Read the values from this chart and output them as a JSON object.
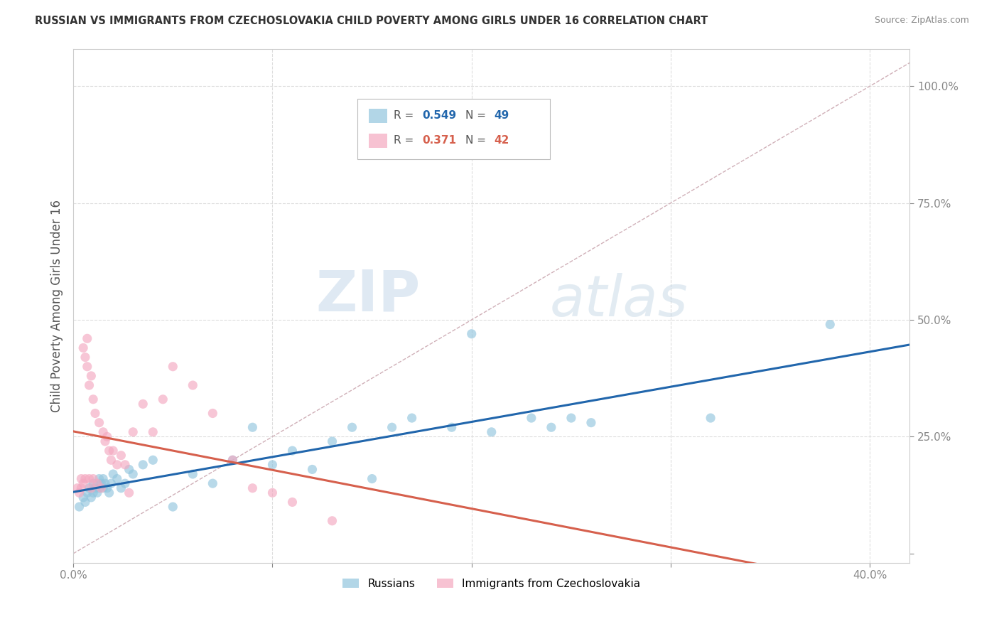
{
  "title": "RUSSIAN VS IMMIGRANTS FROM CZECHOSLOVAKIA CHILD POVERTY AMONG GIRLS UNDER 16 CORRELATION CHART",
  "source": "Source: ZipAtlas.com",
  "ylabel": "Child Poverty Among Girls Under 16",
  "xlim": [
    0.0,
    0.42
  ],
  "ylim": [
    -0.02,
    1.08
  ],
  "russian_color": "#92c5de",
  "czech_color": "#f4a8c0",
  "russian_line_color": "#2166ac",
  "czech_line_color": "#d6604d",
  "diagonal_color": "#d0b0b8",
  "background_color": "#ffffff",
  "grid_color": "#dddddd",
  "watermark_zip": "ZIP",
  "watermark_atlas": "atlas",
  "russian_x": [
    0.003,
    0.005,
    0.006,
    0.007,
    0.008,
    0.009,
    0.01,
    0.01,
    0.011,
    0.012,
    0.013,
    0.013,
    0.014,
    0.015,
    0.015,
    0.016,
    0.017,
    0.018,
    0.019,
    0.02,
    0.022,
    0.024,
    0.026,
    0.028,
    0.03,
    0.035,
    0.04,
    0.05,
    0.06,
    0.07,
    0.08,
    0.09,
    0.1,
    0.11,
    0.12,
    0.13,
    0.14,
    0.15,
    0.16,
    0.17,
    0.19,
    0.2,
    0.21,
    0.23,
    0.24,
    0.25,
    0.26,
    0.32,
    0.38
  ],
  "russian_y": [
    0.1,
    0.12,
    0.11,
    0.13,
    0.14,
    0.12,
    0.13,
    0.15,
    0.14,
    0.13,
    0.14,
    0.16,
    0.15,
    0.14,
    0.16,
    0.15,
    0.14,
    0.13,
    0.15,
    0.17,
    0.16,
    0.14,
    0.15,
    0.18,
    0.17,
    0.19,
    0.2,
    0.1,
    0.17,
    0.15,
    0.2,
    0.27,
    0.19,
    0.22,
    0.18,
    0.24,
    0.27,
    0.16,
    0.27,
    0.29,
    0.27,
    0.47,
    0.26,
    0.29,
    0.27,
    0.29,
    0.28,
    0.29,
    0.49
  ],
  "czech_x": [
    0.002,
    0.003,
    0.004,
    0.004,
    0.005,
    0.005,
    0.006,
    0.006,
    0.007,
    0.007,
    0.008,
    0.008,
    0.009,
    0.009,
    0.01,
    0.01,
    0.011,
    0.012,
    0.013,
    0.014,
    0.015,
    0.016,
    0.017,
    0.018,
    0.019,
    0.02,
    0.022,
    0.024,
    0.026,
    0.028,
    0.03,
    0.035,
    0.04,
    0.045,
    0.05,
    0.06,
    0.07,
    0.08,
    0.09,
    0.1,
    0.11,
    0.13
  ],
  "czech_y": [
    0.14,
    0.13,
    0.14,
    0.16,
    0.15,
    0.44,
    0.42,
    0.16,
    0.46,
    0.4,
    0.36,
    0.16,
    0.38,
    0.14,
    0.33,
    0.16,
    0.3,
    0.15,
    0.28,
    0.14,
    0.26,
    0.24,
    0.25,
    0.22,
    0.2,
    0.22,
    0.19,
    0.21,
    0.19,
    0.13,
    0.26,
    0.32,
    0.26,
    0.33,
    0.4,
    0.36,
    0.3,
    0.2,
    0.14,
    0.13,
    0.11,
    0.07
  ]
}
